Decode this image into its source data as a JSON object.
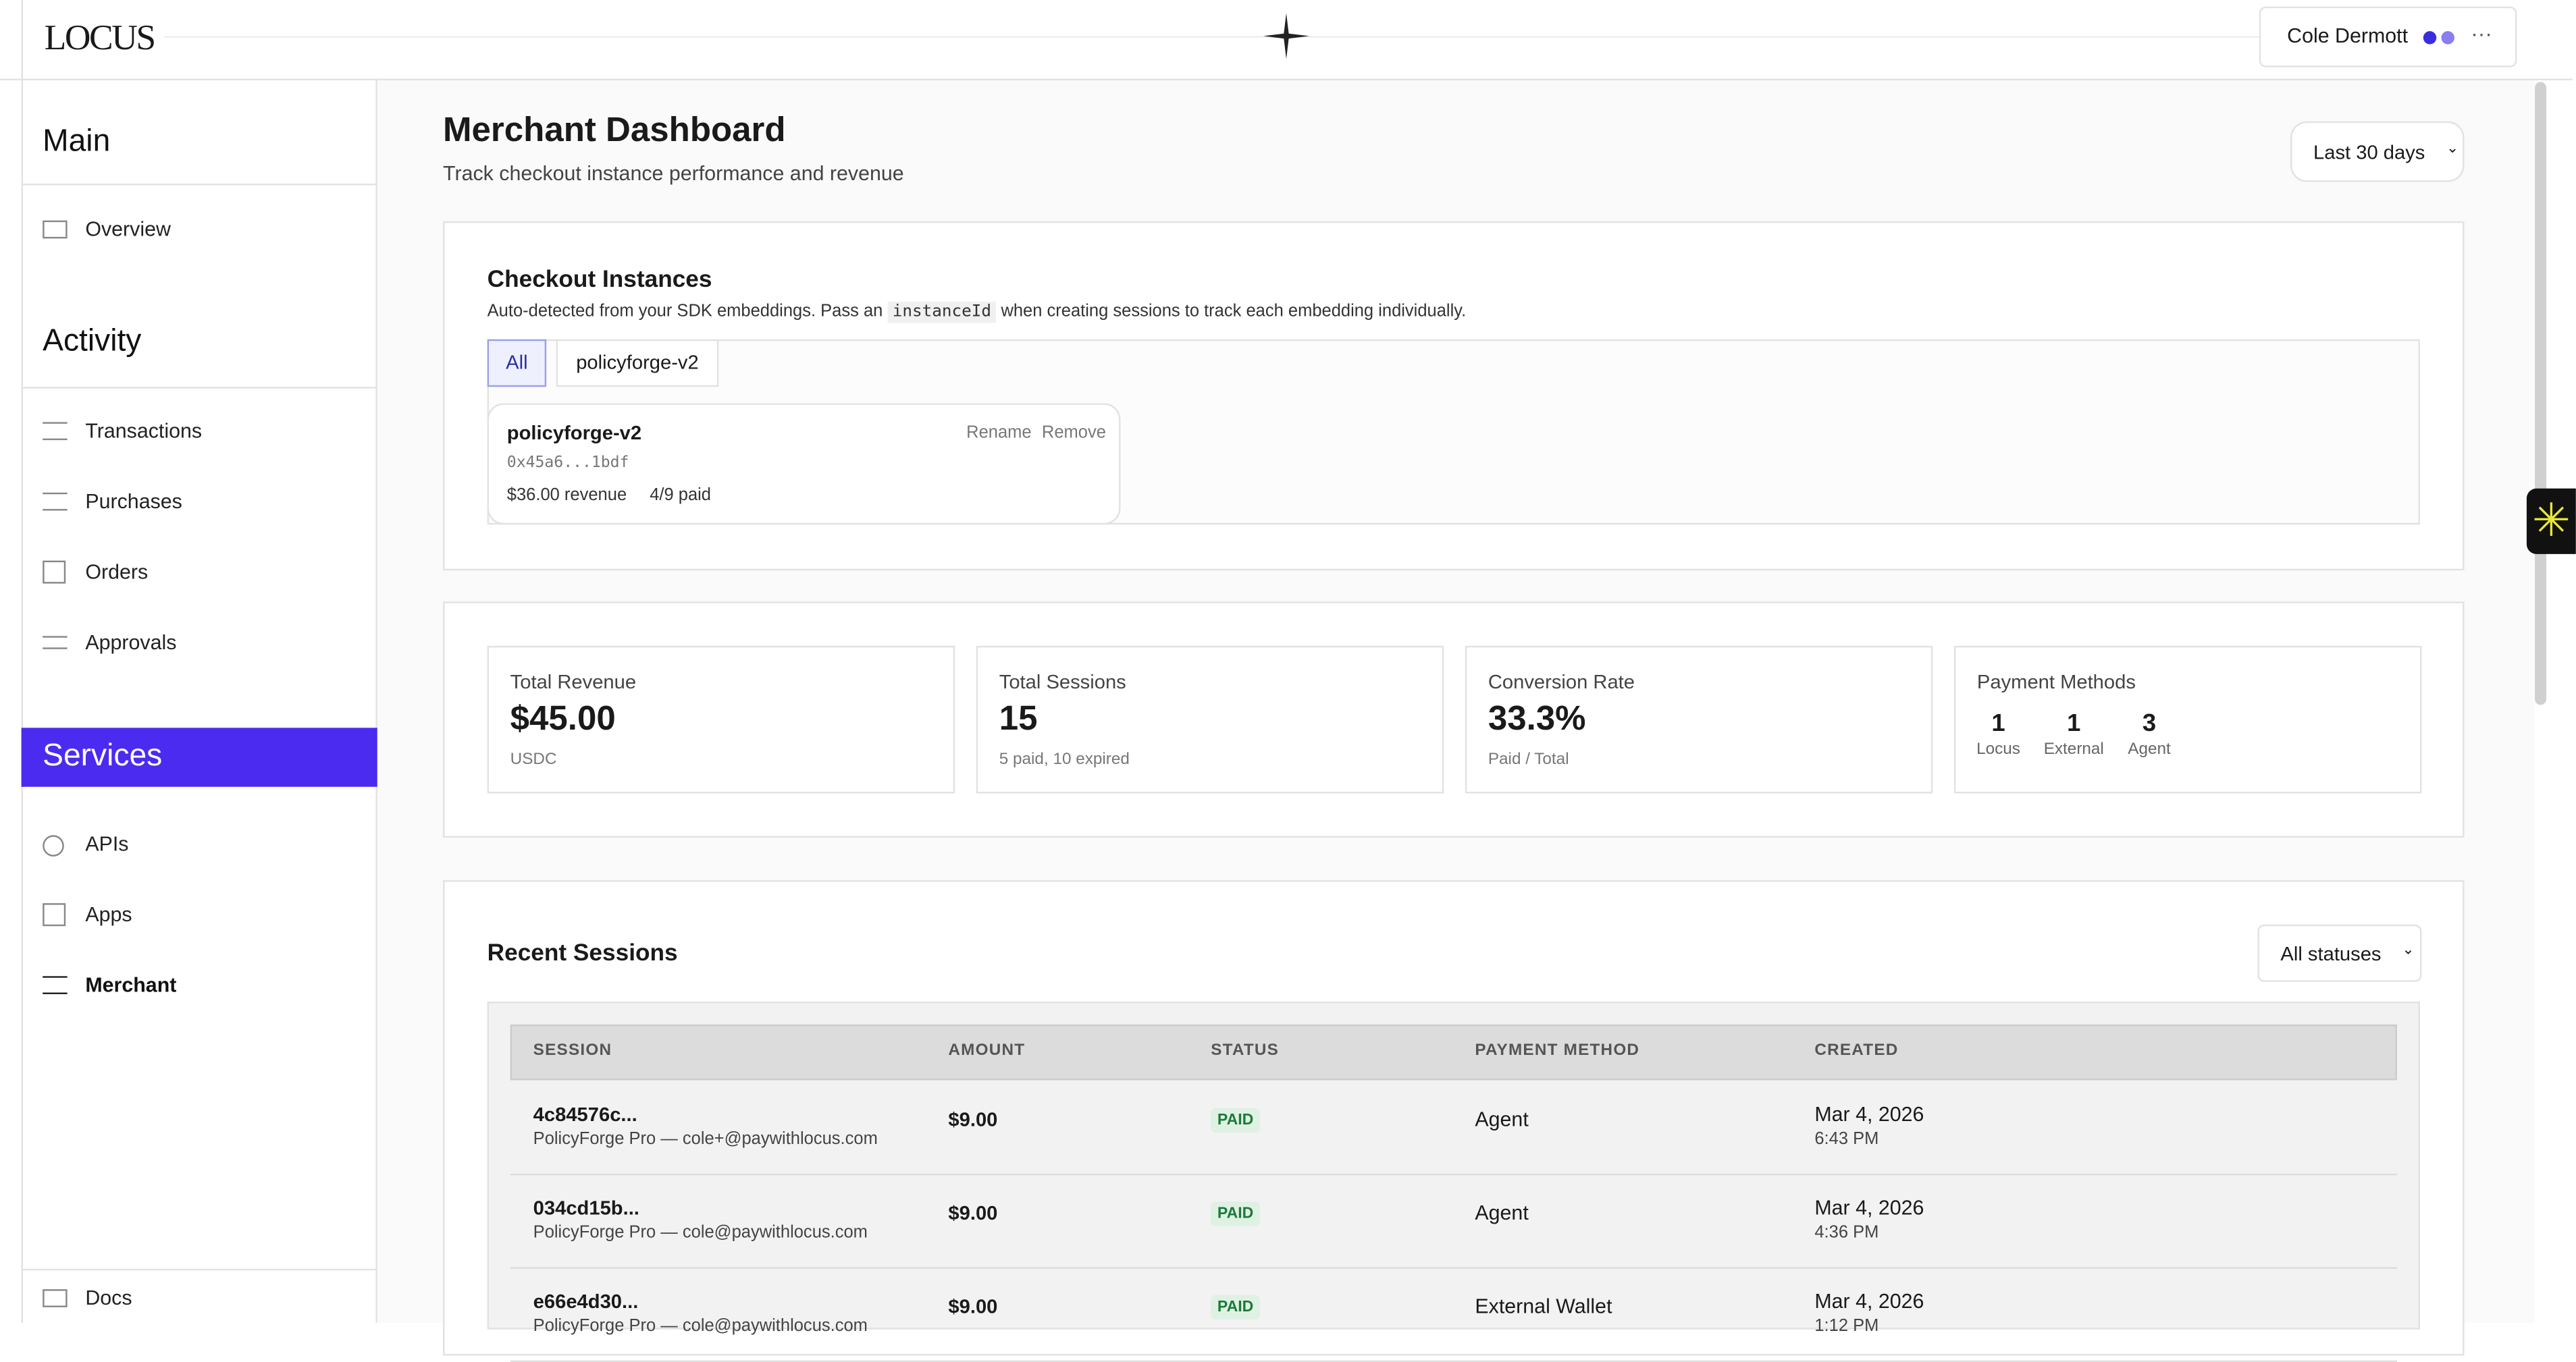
{
  "header": {
    "logo": "LOCUS",
    "user": "Cole Dermott"
  },
  "sidebar": {
    "sections": [
      {
        "title": "Main",
        "items": [
          "Overview"
        ]
      },
      {
        "title": "Activity",
        "items": [
          "Transactions",
          "Purchases",
          "Orders",
          "Approvals"
        ]
      },
      {
        "title": "Services",
        "items": [
          "APIs",
          "Apps",
          "Merchant"
        ]
      }
    ],
    "footer": "Docs"
  },
  "page": {
    "title": "Merchant Dashboard",
    "subtitle": "Track checkout instance performance and revenue",
    "range": "Last 30 days"
  },
  "instances": {
    "title": "Checkout Instances",
    "desc_before": "Auto-detected from your SDK embeddings. Pass an",
    "code": "instanceId",
    "desc_after": "when creating sessions to track each embedding individually.",
    "tabs": [
      "All",
      "policyforge-v2"
    ],
    "card": {
      "name": "policyforge-v2",
      "address": "0x45a6...1bdf",
      "revenue": "$36.00 revenue",
      "paid": "4/9 paid",
      "actions": [
        "Rename",
        "Remove"
      ]
    }
  },
  "stats": [
    {
      "label": "Total Revenue",
      "value": "$45.00",
      "note": "USDC"
    },
    {
      "label": "Total Sessions",
      "value": "15",
      "note": "5 paid, 10 expired"
    },
    {
      "label": "Conversion Rate",
      "value": "33.3%",
      "note": "Paid / Total"
    }
  ],
  "payment_methods": {
    "label": "Payment Methods",
    "items": [
      {
        "count": "1",
        "name": "Locus"
      },
      {
        "count": "1",
        "name": "External"
      },
      {
        "count": "3",
        "name": "Agent"
      }
    ]
  },
  "sessions": {
    "title": "Recent Sessions",
    "filter": "All statuses",
    "columns": [
      "SESSION",
      "AMOUNT",
      "STATUS",
      "PAYMENT METHOD",
      "CREATED"
    ],
    "rows": [
      {
        "id": "4c84576c...",
        "desc": "PolicyForge Pro — cole+@paywithlocus.com",
        "amount": "$9.00",
        "status": "PAID",
        "method": "Agent",
        "date": "Mar 4, 2026",
        "time": "6:43 PM"
      },
      {
        "id": "034cd15b...",
        "desc": "PolicyForge Pro — cole@paywithlocus.com",
        "amount": "$9.00",
        "status": "PAID",
        "method": "Agent",
        "date": "Mar 4, 2026",
        "time": "4:36 PM"
      },
      {
        "id": "e66e4d30...",
        "desc": "PolicyForge Pro — cole@paywithlocus.com",
        "amount": "$9.00",
        "status": "PAID",
        "method": "External Wallet",
        "date": "Mar 4, 2026",
        "time": "1:12 PM"
      }
    ]
  }
}
